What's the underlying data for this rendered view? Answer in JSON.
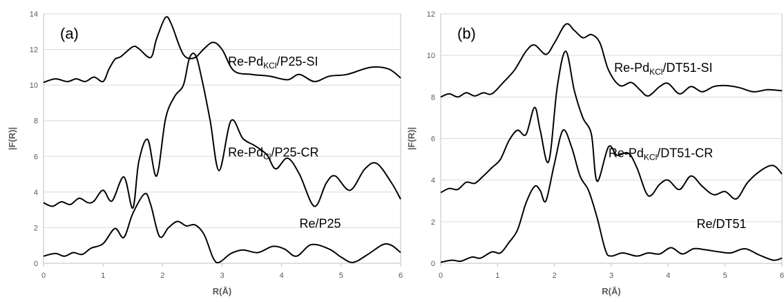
{
  "chart_data": [
    {
      "type": "line",
      "panel_label": "(a)",
      "title": "",
      "xlabel": "R(Å)",
      "ylabel": "|F(R)|",
      "xlim": [
        0,
        6
      ],
      "ylim": [
        0,
        14
      ],
      "xticks": [
        0,
        1,
        2,
        3,
        4,
        5,
        6
      ],
      "yticks": [
        0,
        2,
        4,
        6,
        8,
        10,
        12,
        14
      ],
      "grid": "horizontal",
      "series": [
        {
          "label_main": "Re-Pd",
          "label_sub": "KCl",
          "label_tail": "/P25-SI",
          "label_pos": [
            3.1,
            11.1
          ],
          "x": [
            0,
            0.2,
            0.4,
            0.55,
            0.7,
            0.85,
            1.0,
            1.1,
            1.2,
            1.3,
            1.5,
            1.6,
            1.8,
            1.9,
            2.05,
            2.15,
            2.3,
            2.4,
            2.55,
            2.7,
            2.85,
            3.0,
            3.2,
            3.5,
            3.8,
            4.1,
            4.3,
            4.55,
            4.8,
            5.1,
            5.5,
            5.8,
            6.0
          ],
          "y": [
            10.15,
            10.35,
            10.2,
            10.35,
            10.2,
            10.45,
            10.2,
            10.9,
            11.45,
            11.6,
            12.15,
            12.05,
            11.55,
            12.6,
            13.8,
            13.4,
            12.05,
            11.55,
            11.55,
            12.05,
            12.4,
            12.0,
            10.8,
            10.6,
            10.5,
            10.3,
            10.6,
            10.2,
            10.5,
            10.6,
            11.0,
            10.9,
            10.4
          ]
        },
        {
          "label_main": "Re-Pd",
          "label_sub": "Cl",
          "label_tail": "/P25-CR",
          "label_pos": [
            3.1,
            6.0
          ],
          "x": [
            0,
            0.15,
            0.3,
            0.45,
            0.6,
            0.75,
            0.85,
            1.0,
            1.15,
            1.35,
            1.5,
            1.6,
            1.75,
            1.9,
            2.05,
            2.2,
            2.35,
            2.45,
            2.55,
            2.65,
            2.8,
            2.95,
            3.15,
            3.35,
            3.55,
            3.75,
            3.9,
            4.1,
            4.3,
            4.55,
            4.75,
            4.9,
            5.15,
            5.4,
            5.6,
            5.85,
            6.0
          ],
          "y": [
            3.4,
            3.2,
            3.45,
            3.3,
            3.65,
            3.4,
            3.5,
            4.1,
            3.5,
            4.85,
            3.1,
            5.7,
            6.95,
            4.9,
            8.1,
            9.35,
            10.0,
            11.5,
            11.7,
            10.5,
            8.0,
            5.2,
            8.0,
            7.0,
            6.6,
            6.1,
            5.3,
            5.9,
            5.0,
            3.2,
            4.5,
            4.9,
            4.1,
            5.3,
            5.6,
            4.5,
            3.6
          ]
        },
        {
          "label_main": "Re/P25",
          "label_sub": "",
          "label_tail": "",
          "label_pos": [
            4.3,
            2.0
          ],
          "x": [
            0,
            0.2,
            0.35,
            0.5,
            0.65,
            0.8,
            1.0,
            1.2,
            1.35,
            1.5,
            1.7,
            1.8,
            1.95,
            2.1,
            2.25,
            2.4,
            2.55,
            2.7,
            2.85,
            2.95,
            3.15,
            3.35,
            3.6,
            3.85,
            4.05,
            4.25,
            4.5,
            4.8,
            5.0,
            5.2,
            5.45,
            5.7,
            5.85,
            6.0
          ],
          "y": [
            0.4,
            0.55,
            0.4,
            0.6,
            0.5,
            0.85,
            1.1,
            1.95,
            1.45,
            2.8,
            3.9,
            3.3,
            1.5,
            2.0,
            2.35,
            2.1,
            2.15,
            1.6,
            0.3,
            0.05,
            0.55,
            0.75,
            0.6,
            0.95,
            0.8,
            0.4,
            1.05,
            0.8,
            0.35,
            0.05,
            0.5,
            1.05,
            1.0,
            0.6
          ]
        }
      ]
    },
    {
      "type": "line",
      "panel_label": "(b)",
      "title": "",
      "xlabel": "R(Å)",
      "ylabel": "|F(R)|",
      "xlim": [
        0,
        6
      ],
      "ylim": [
        0,
        12
      ],
      "xticks": [
        0,
        1,
        2,
        3,
        4,
        5,
        6
      ],
      "yticks": [
        0,
        2,
        4,
        6,
        8,
        10,
        12
      ],
      "grid": "horizontal",
      "series": [
        {
          "label_main": "Re-Pd",
          "label_sub": "KCl",
          "label_tail": "/DT51-SI",
          "label_pos": [
            3.05,
            9.2
          ],
          "x": [
            0,
            0.15,
            0.3,
            0.45,
            0.6,
            0.75,
            0.9,
            1.1,
            1.3,
            1.5,
            1.65,
            1.85,
            2.0,
            2.2,
            2.35,
            2.5,
            2.65,
            2.8,
            2.95,
            3.15,
            3.35,
            3.5,
            3.65,
            3.85,
            4.0,
            4.2,
            4.4,
            4.6,
            4.8,
            5.0,
            5.25,
            5.5,
            5.75,
            6.0
          ],
          "y": [
            8.0,
            8.15,
            8.0,
            8.2,
            8.05,
            8.2,
            8.15,
            8.7,
            9.3,
            10.2,
            10.5,
            10.05,
            10.6,
            11.5,
            11.2,
            10.85,
            11.0,
            10.6,
            9.3,
            8.55,
            8.7,
            8.35,
            8.05,
            8.5,
            8.65,
            8.15,
            8.5,
            8.25,
            8.5,
            8.55,
            8.45,
            8.25,
            8.35,
            8.3
          ]
        },
        {
          "label_main": "Re-Pd",
          "label_sub": "KCl",
          "label_tail": "/DT51-CR",
          "label_pos": [
            2.95,
            5.1
          ],
          "x": [
            0,
            0.15,
            0.3,
            0.45,
            0.6,
            0.75,
            0.9,
            1.05,
            1.2,
            1.35,
            1.5,
            1.65,
            1.75,
            1.9,
            2.05,
            2.2,
            2.35,
            2.5,
            2.65,
            2.75,
            2.95,
            3.1,
            3.3,
            3.45,
            3.65,
            3.85,
            4.0,
            4.2,
            4.4,
            4.6,
            4.8,
            5.0,
            5.2,
            5.4,
            5.65,
            5.85,
            6.0
          ],
          "y": [
            3.4,
            3.6,
            3.55,
            3.9,
            3.85,
            4.2,
            4.6,
            5.0,
            5.9,
            6.4,
            6.2,
            7.5,
            6.4,
            4.9,
            8.5,
            10.2,
            8.3,
            7.0,
            6.2,
            3.95,
            5.6,
            5.2,
            5.3,
            4.6,
            3.25,
            3.8,
            4.0,
            3.55,
            4.2,
            3.7,
            3.3,
            3.45,
            3.1,
            3.9,
            4.5,
            4.7,
            4.3
          ]
        },
        {
          "label_main": "Re/DT51",
          "label_sub": "",
          "label_tail": "",
          "label_pos": [
            4.5,
            1.7
          ],
          "x": [
            0,
            0.2,
            0.35,
            0.55,
            0.7,
            0.9,
            1.05,
            1.2,
            1.35,
            1.5,
            1.65,
            1.75,
            1.85,
            2.0,
            2.15,
            2.3,
            2.45,
            2.6,
            2.75,
            2.9,
            3.0,
            3.2,
            3.45,
            3.65,
            3.85,
            4.05,
            4.25,
            4.45,
            4.65,
            4.9,
            5.1,
            5.35,
            5.6,
            5.85,
            6.0
          ],
          "y": [
            0.05,
            0.15,
            0.1,
            0.3,
            0.25,
            0.55,
            0.5,
            1.0,
            1.6,
            2.9,
            3.7,
            3.5,
            3.0,
            4.8,
            6.4,
            5.6,
            4.2,
            3.5,
            2.2,
            0.6,
            0.35,
            0.5,
            0.35,
            0.5,
            0.45,
            0.75,
            0.45,
            0.7,
            0.65,
            0.55,
            0.5,
            0.7,
            0.4,
            0.15,
            0.25
          ]
        }
      ]
    }
  ]
}
